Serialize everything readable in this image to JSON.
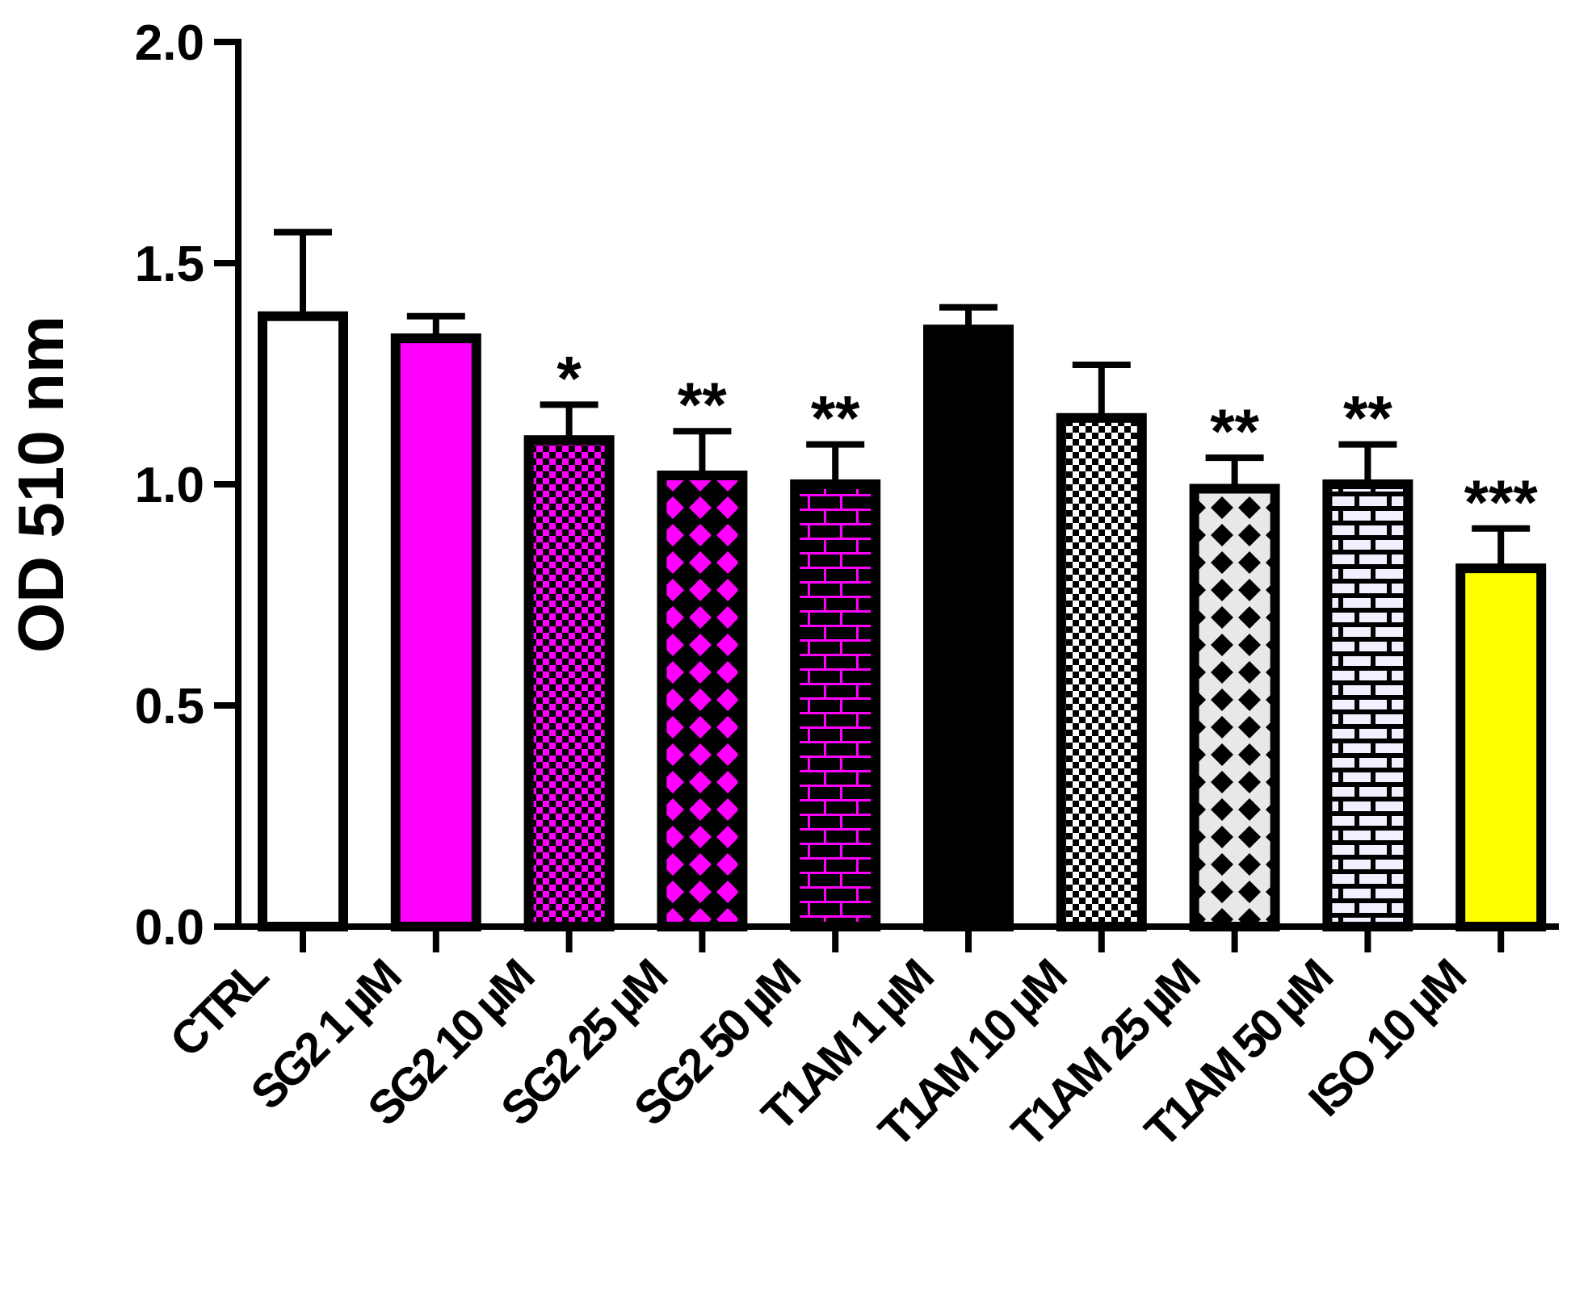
{
  "chart_data": {
    "type": "bar",
    "title": "",
    "xlabel": "",
    "ylabel": "OD 510 nm",
    "ylim": [
      0,
      2.0
    ],
    "yticks": [
      0.0,
      0.5,
      1.0,
      1.5,
      2.0
    ],
    "ytick_labels": [
      "0.0",
      "0.5",
      "1.0",
      "1.5",
      "2.0"
    ],
    "categories": [
      "CTRL",
      "SG2 1 µM",
      "SG2 10 µM",
      "SG2 25 µM",
      "SG2 50 µM",
      "T1AM 1 µM",
      "T1AM 10 µM",
      "T1AM 25 µM",
      "T1AM 50 µM",
      "ISO 10 µM"
    ],
    "values": [
      1.38,
      1.33,
      1.1,
      1.02,
      1.0,
      1.35,
      1.15,
      0.99,
      1.0,
      0.81
    ],
    "errors": [
      0.19,
      0.05,
      0.08,
      0.1,
      0.09,
      0.05,
      0.12,
      0.07,
      0.09,
      0.09
    ],
    "significance": [
      "",
      "",
      "*",
      "**",
      "**",
      "",
      "",
      "**",
      "**",
      "***"
    ],
    "colors": {
      "outline": "#000000",
      "white": "#ffffff",
      "magenta": "#ff00ff",
      "black": "#000000",
      "yellow": "#ffff00",
      "light_gray": "#e8e8e8",
      "lavender": "#f0f0ff"
    },
    "bar_styles": [
      {
        "pattern": "solid",
        "color": "#ffffff"
      },
      {
        "pattern": "solid",
        "color": "#ff00ff"
      },
      {
        "pattern": "checker",
        "color": "#ff00ff",
        "bg": "#000000"
      },
      {
        "pattern": "diamond",
        "color": "#ff00ff",
        "bg": "#000000"
      },
      {
        "pattern": "brick",
        "color": "#ff00ff",
        "bg": "#000000"
      },
      {
        "pattern": "solid",
        "color": "#000000"
      },
      {
        "pattern": "checker",
        "color": "#000000",
        "bg": "#ffffff"
      },
      {
        "pattern": "diamond",
        "color": "#000000",
        "bg": "#e8e8e8"
      },
      {
        "pattern": "brick",
        "color": "#000000",
        "bg": "#f0f0ff"
      },
      {
        "pattern": "solid",
        "color": "#ffff00"
      }
    ]
  }
}
